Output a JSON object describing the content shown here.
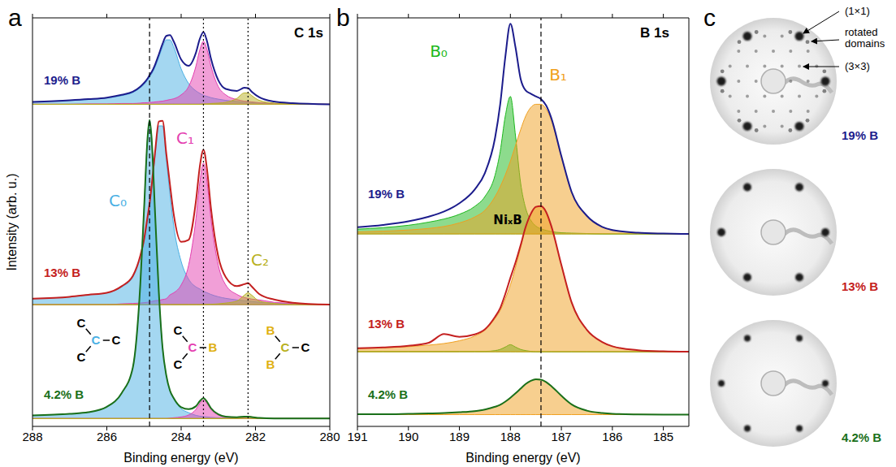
{
  "chart_data": [
    {
      "panel": "a",
      "type": "line",
      "title": "C 1s",
      "xlabel": "Binding energy (eV)",
      "ylabel": "Intensity (arb. u.)",
      "xlim": [
        288,
        280
      ],
      "xticks": [
        288,
        286,
        284,
        282,
        280
      ],
      "ylim": [
        0,
        104
      ],
      "tick_labels": "x",
      "x": [
        288,
        287,
        286.5,
        286,
        285.6,
        285.3,
        285.1,
        285,
        284.9,
        284.85,
        284.8,
        284.7,
        284.6,
        284.5,
        284.4,
        284.3,
        284.2,
        284,
        283.8,
        283.6,
        283.5,
        283.4,
        283.3,
        283.2,
        283,
        282.8,
        282.5,
        282.3,
        282.2,
        282.1,
        281.9,
        281.5,
        281,
        280
      ],
      "reference_lines": [
        {
          "x": 284.85,
          "line_style": "dashed"
        },
        {
          "x": 283.4,
          "line_style": "dotted"
        },
        {
          "x": 282.2,
          "line_style": "dotted"
        }
      ],
      "components": [
        {
          "name": "C₀",
          "color": "#4ab0e4"
        },
        {
          "name": "C₁",
          "color": "#e43fb0"
        },
        {
          "name": "C₂",
          "color": "#b8b020"
        }
      ],
      "series": [
        {
          "name": "19% B",
          "color": "#1c1c8c",
          "baseline": 82,
          "values": [
            82.6,
            83,
            83.3,
            83.7,
            84.4,
            85.2,
            86.5,
            87.4,
            88.6,
            89.4,
            90.1,
            92.1,
            94.7,
            97.4,
            99.4,
            99.6,
            98,
            93.4,
            91.8,
            95.2,
            98.6,
            100.4,
            97.9,
            93.7,
            88.1,
            85.9,
            85.4,
            86.2,
            86.1,
            85.2,
            83.8,
            82.7,
            82.3,
            82
          ],
          "components": [
            [
              82.6,
              83,
              83.2,
              83.6,
              84.2,
              85,
              86.2,
              87,
              88.2,
              88.9,
              89.6,
              91.5,
              94,
              96.6,
              98.4,
              98.4,
              96.6,
              91,
              87.3,
              85.4,
              84.8,
              84.3,
              84,
              83.7,
              83.3,
              83,
              82.7,
              82.5,
              82.5,
              82.4,
              82.35,
              82.2,
              82.1,
              82
            ],
            [
              82,
              82,
              82.1,
              82.1,
              82.2,
              82.2,
              82.3,
              82.4,
              82.4,
              82.5,
              82.5,
              82.6,
              82.7,
              82.8,
              83,
              83.2,
              83.4,
              84.4,
              86.5,
              91.8,
              95.8,
              98,
              95.8,
              91.8,
              86.5,
              84.4,
              83.2,
              82.8,
              82.7,
              82.6,
              82.4,
              82.2,
              82.1,
              82
            ],
            [
              82,
              82,
              82,
              82,
              82,
              82,
              82,
              82,
              82,
              82,
              82,
              82,
              82,
              82,
              82,
              82,
              82,
              82,
              82,
              82,
              82,
              82.1,
              82.1,
              82.2,
              82.3,
              82.5,
              83.5,
              84.9,
              84.9,
              84.2,
              83,
              82.3,
              82.1,
              82
            ]
          ]
        },
        {
          "name": "13% B",
          "color": "#c42020",
          "baseline": 31,
          "values": [
            32.5,
            33,
            33.5,
            34,
            35.7,
            38.3,
            43.4,
            47.5,
            53.6,
            56.7,
            60.8,
            70,
            77.6,
            77.8,
            69.5,
            61.5,
            54,
            47,
            47.5,
            57.5,
            66,
            70.4,
            65.1,
            55.7,
            43.2,
            38,
            35.7,
            36.2,
            36.5,
            35.6,
            33.7,
            32.3,
            31.5,
            31
          ],
          "components": [
            [
              32.5,
              33,
              33.5,
              34,
              35.5,
              38,
              43,
              47,
              53,
              56,
              60,
              69,
              76.5,
              76.5,
              68,
              59,
              51,
              42,
              37.5,
              35.5,
              35,
              34.4,
              34,
              33.6,
              33,
              32.6,
              32.2,
              32,
              31.9,
              31.8,
              31.6,
              31.4,
              31.2,
              31
            ],
            [
              31,
              31,
              31,
              31,
              31.2,
              31.3,
              31.4,
              31.5,
              31.6,
              31.7,
              31.8,
              32,
              32.1,
              32.3,
              32.5,
              33.5,
              34,
              36,
              41,
              53,
              62,
              67,
              62,
              53,
              41,
              36,
              33.6,
              32.8,
              32.6,
              32.4,
              32.2,
              31.6,
              31.3,
              31
            ],
            [
              31,
              31,
              31,
              31,
              31,
              31,
              31,
              31,
              31,
              31,
              31,
              31,
              31,
              31,
              31,
              31,
              31,
              31,
              31,
              31,
              31,
              31,
              31.1,
              31.1,
              31.2,
              31.4,
              31.9,
              33.4,
              34,
              33.4,
              31.9,
              31.3,
              31,
              31
            ]
          ]
        },
        {
          "name": "4.2% B",
          "color": "#1a701a",
          "baseline": 2,
          "values": [
            2.8,
            3.2,
            3.6,
            5,
            8.5,
            15,
            36,
            55,
            74,
            78,
            74,
            54,
            34,
            20,
            13,
            9.1,
            7.2,
            4.9,
            4.4,
            5.15,
            6.4,
            7.2,
            6.2,
            4.65,
            3.1,
            2.5,
            2.35,
            2.5,
            2.5,
            2.4,
            2.15,
            2,
            2,
            2
          ],
          "components": [
            [
              2.8,
              3.2,
              3.6,
              5,
              8.5,
              15,
              36,
              55,
              74,
              78,
              74,
              54,
              34,
              20,
              13,
              9,
              7,
              4.5,
              3.5,
              2.8,
              2.6,
              2.5,
              2.4,
              2.3,
              2.2,
              2.1,
              2.05,
              2,
              2,
              2,
              2,
              2,
              2,
              2
            ],
            [
              2,
              2,
              2,
              2,
              2,
              2,
              2,
              2,
              2,
              2,
              2,
              2,
              2,
              2,
              2,
              2.1,
              2.2,
              2.4,
              2.9,
              4.35,
              5.8,
              6.7,
              5.8,
              4.35,
              2.9,
              2.4,
              2.15,
              2.1,
              2,
              2,
              2,
              2,
              2,
              2
            ],
            [
              2,
              2,
              2,
              2,
              2,
              2,
              2,
              2,
              2,
              2,
              2,
              2,
              2,
              2,
              2,
              2,
              2,
              2,
              2,
              2,
              2,
              2,
              2,
              2,
              2,
              2,
              2.15,
              2.4,
              2.5,
              2.4,
              2.15,
              2,
              2,
              2
            ]
          ]
        }
      ],
      "structures": [
        {
          "center": "C",
          "center_color": "#4ab0e4",
          "neighbors": [
            "C",
            "C",
            "C"
          ],
          "neighbor_colors": [
            "#000000",
            "#000000",
            "#000000"
          ]
        },
        {
          "center": "C",
          "center_color": "#e43fb0",
          "neighbors": [
            "C",
            "C",
            "B"
          ],
          "neighbor_colors": [
            "#000000",
            "#000000",
            "#e0b010"
          ]
        },
        {
          "center": "C",
          "center_color": "#b8b020",
          "neighbors": [
            "B",
            "B",
            "C"
          ],
          "neighbor_colors": [
            "#e0b010",
            "#e0b010",
            "#000000"
          ]
        }
      ]
    },
    {
      "panel": "b",
      "type": "line",
      "title": "B 1s",
      "xlabel": "Binding energy (eV)",
      "xlim": [
        191,
        184.5
      ],
      "xticks": [
        191,
        190,
        189,
        188,
        187,
        186,
        185
      ],
      "ylim": [
        0,
        104
      ],
      "tick_labels": "x",
      "x": [
        191,
        190.5,
        190,
        189.6,
        189.3,
        189,
        188.7,
        188.5,
        188.3,
        188.2,
        188.1,
        188,
        187.9,
        187.8,
        187.7,
        187.6,
        187.5,
        187.4,
        187.3,
        187.2,
        187,
        186.8,
        186.5,
        186.2,
        186,
        185.5,
        185,
        184.5
      ],
      "reference_lines": [
        {
          "x": 187.4,
          "line_style": "dashed"
        }
      ],
      "components": [
        {
          "name": "B₀",
          "color": "#1cb81c"
        },
        {
          "name": "B₁",
          "color": "#f0a020"
        }
      ],
      "series": [
        {
          "name": "19% B",
          "color": "#1c1c8c",
          "baseline": 49,
          "values": [
            50.7,
            51.3,
            52.2,
            53.4,
            54.7,
            56.8,
            60.3,
            64.5,
            73.5,
            82,
            94,
            102.5,
            96.5,
            88.5,
            85.5,
            84.7,
            84,
            83.3,
            81.7,
            78.6,
            68.8,
            59.7,
            53.6,
            50.8,
            50,
            49.3,
            49.1,
            49
          ],
          "components": [
            [
              50.2,
              50.6,
              51.2,
              52,
              52.8,
              54,
              56,
              58.5,
              64,
              70,
              79,
              84,
              74,
              62,
              55.5,
              52.5,
              51,
              50.3,
              49.9,
              49.6,
              49.3,
              49.2,
              49.1,
              49,
              49,
              49,
              49,
              49
            ],
            [
              49.5,
              49.7,
              50,
              50.4,
              50.9,
              51.8,
              53.3,
              55,
              58.5,
              61,
              64,
              67.5,
              71.5,
              75.5,
              79,
              81.2,
              82,
              82,
              80.8,
              78,
              68.5,
              59.5,
              53.5,
              50.8,
              50,
              49.3,
              49.1,
              49
            ]
          ]
        },
        {
          "name": "13% B",
          "color": "#c42020",
          "baseline": 19,
          "values": [
            19.9,
            20.1,
            20.5,
            21.3,
            23.5,
            22.8,
            23.4,
            24.7,
            27.9,
            30.1,
            33.7,
            37.8,
            41.7,
            46.1,
            50.8,
            54.1,
            55.9,
            56.1,
            54.6,
            51.1,
            41.1,
            31.6,
            24.6,
            21.5,
            20.4,
            19.4,
            19.1,
            19
          ],
          "components": [
            [
              19.1,
              19.1,
              19.1,
              19.1,
              19.1,
              19.1,
              19.1,
              19.1,
              19.3,
              19.6,
              20.2,
              20.8,
              20.2,
              19.6,
              19.3,
              19.1,
              19,
              19,
              19,
              19,
              19,
              19,
              19,
              19,
              19,
              19,
              19,
              19
            ],
            [
              19.8,
              20,
              20.3,
              20.7,
              21.1,
              21.8,
              23,
              24.5,
              27.5,
              29.5,
              32.5,
              36,
              40.5,
              45.5,
              50.5,
              54,
              55.8,
              56,
              54.5,
              51,
              41,
              31.5,
              24.5,
              21.5,
              20.4,
              19.4,
              19.1,
              19
            ]
          ]
        },
        {
          "name": "4.2% B",
          "color": "#1a701a",
          "baseline": 3,
          "values": [
            3.1,
            3.1,
            3.2,
            3.3,
            3.4,
            3.6,
            3.9,
            4.3,
            5,
            5.5,
            6.3,
            7.3,
            8.4,
            9.6,
            10.8,
            11.6,
            12,
            11.9,
            11.3,
            10.3,
            7.8,
            5.6,
            4,
            3.4,
            3.2,
            3.05,
            3,
            3
          ],
          "components": [
            null,
            [
              3.1,
              3.1,
              3.2,
              3.3,
              3.4,
              3.6,
              3.9,
              4.3,
              5,
              5.5,
              6.3,
              7.3,
              8.4,
              9.6,
              10.8,
              11.6,
              12,
              11.9,
              11.3,
              10.3,
              7.8,
              5.6,
              4,
              3.4,
              3.2,
              3.05,
              3,
              3
            ]
          ]
        }
      ],
      "annotations": [
        {
          "text": "NiₓB"
        }
      ]
    }
  ],
  "leed": {
    "panel": "c",
    "images": [
      {
        "label": "19% B",
        "color": "#1c1c8c",
        "annotations": [
          "(1×1)",
          "rotated domains",
          "(3×3)"
        ]
      },
      {
        "label": "13% B",
        "color": "#c42020"
      },
      {
        "label": "4.2% B",
        "color": "#1a701a"
      }
    ]
  }
}
